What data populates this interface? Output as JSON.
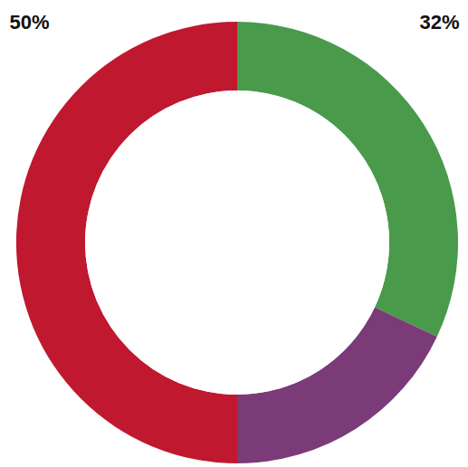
{
  "chart_data": {
    "type": "pie",
    "values": [
      32,
      18,
      50
    ],
    "colors": [
      "#4a9a4c",
      "#7b3b78",
      "#c0182f"
    ],
    "data_labels": true,
    "value_labels": [
      "32%",
      null,
      "50%"
    ]
  }
}
